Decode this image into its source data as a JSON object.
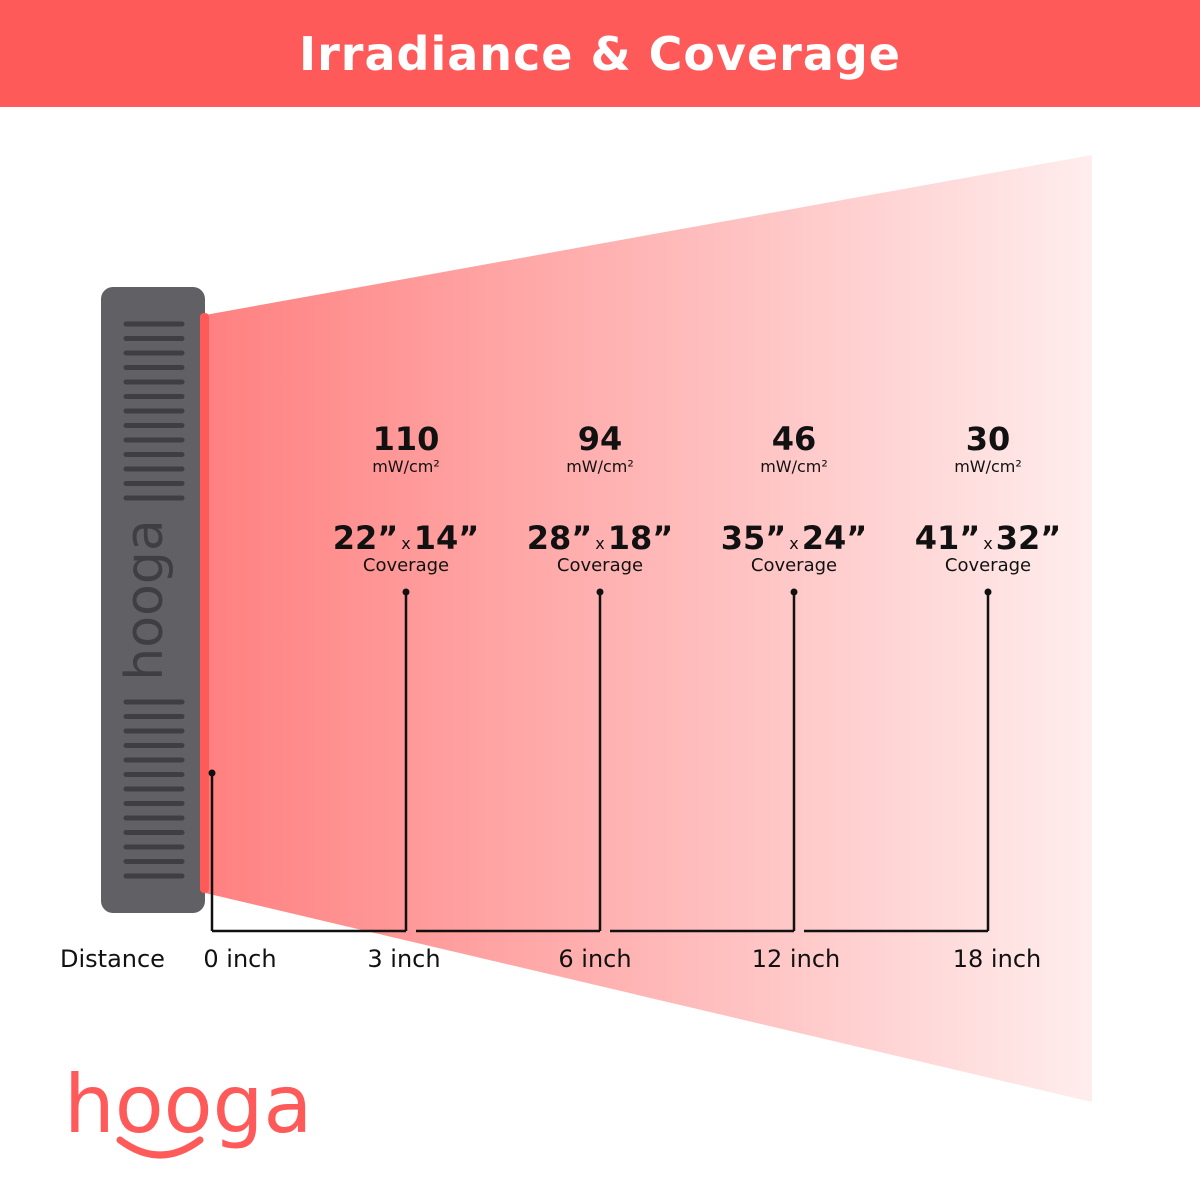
{
  "title": "Irradiance & Coverage",
  "device_logo": "hooga",
  "brand_logo": "hooga",
  "colors": {
    "header": "#ff5a5a",
    "device": "#616064",
    "beam_start": "#ff8080",
    "beam_end": "#ffeded",
    "logo_accent": "#f9a58a"
  },
  "distance_label": "Distance",
  "zero_label": "0 inch",
  "measurements": [
    {
      "irradiance": "110",
      "unit": "mW/cm²",
      "w": "22”",
      "x": "x",
      "h": "14”",
      "coverage_label": "Coverage",
      "distance": "3 inch"
    },
    {
      "irradiance": "94",
      "unit": "mW/cm²",
      "w": "28”",
      "x": "x",
      "h": "18”",
      "coverage_label": "Coverage",
      "distance": "6 inch"
    },
    {
      "irradiance": "46",
      "unit": "mW/cm²",
      "w": "35”",
      "x": "x",
      "h": "24”",
      "coverage_label": "Coverage",
      "distance": "12 inch"
    },
    {
      "irradiance": "30",
      "unit": "mW/cm²",
      "w": "41”",
      "x": "x",
      "h": "32”",
      "coverage_label": "Coverage",
      "distance": "18 inch"
    }
  ]
}
